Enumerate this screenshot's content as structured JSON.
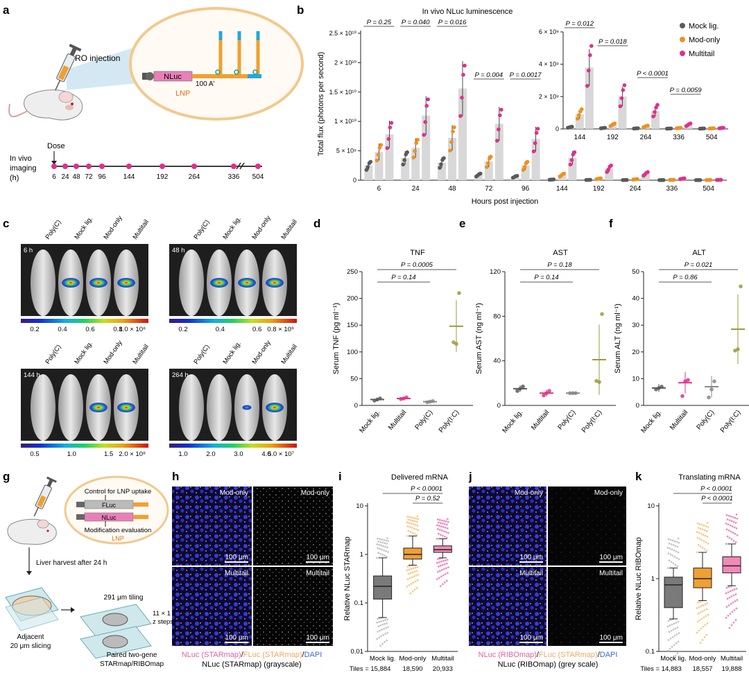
{
  "panel_letters": [
    "a",
    "b",
    "c",
    "d",
    "e",
    "f",
    "g",
    "h",
    "i",
    "j",
    "k"
  ],
  "panel_a": {
    "injection": "RO injection",
    "nluc": "NLuc",
    "polya": "100 A'",
    "lnp": "LNP",
    "dose": "Dose",
    "imaging_label": [
      "In vivo",
      "imaging",
      "(h)"
    ],
    "timepoints": [
      "6",
      "24",
      "48",
      "72",
      "96",
      "144",
      "192",
      "264",
      "336",
      "504"
    ]
  },
  "colors": {
    "mock": "#5a5a5a",
    "mod": "#f0901f",
    "multi": "#e0308a",
    "poly": "#9b9a3a",
    "bar": "#d8d8d8",
    "tube": "#f0a030",
    "tail": "#25a8d8",
    "ring": "#f2c98e"
  },
  "chart_data": [
    {
      "type": "bar",
      "panel": "b",
      "title": "In vivo NLuc luminescence",
      "xlabel": "Hours post injection",
      "ylabel": "Total flux (photons per second)",
      "ylim": [
        0,
        25000000000.0
      ],
      "yticks": [
        "0",
        "5 × 10⁹",
        "1 × 10¹⁰",
        "1.5 × 10¹⁰",
        "2 × 10¹⁰",
        "2.5 × 10¹⁰"
      ],
      "categories": [
        "6",
        "24",
        "48",
        "72",
        "96",
        "144",
        "192",
        "264",
        "336",
        "504"
      ],
      "series": [
        {
          "name": "Mock lig.",
          "values": [
            2500000000.0,
            3800000000.0,
            3000000000.0,
            900000000.0,
            600000000.0,
            100000000.0,
            50000000.0,
            30000000.0,
            20000000.0,
            20000000.0
          ]
        },
        {
          "name": "Mod-only",
          "values": [
            4800000000.0,
            5500000000.0,
            7200000000.0,
            3200000000.0,
            2500000000.0,
            900000000.0,
            250000000.0,
            150000000.0,
            50000000.0,
            30000000.0
          ]
        },
        {
          "name": "Multitail",
          "values": [
            7800000000.0,
            11000000000.0,
            15600000000.0,
            9600000000.0,
            7000000000.0,
            3800000000.0,
            2000000000.0,
            1100000000.0,
            250000000.0,
            50000000.0
          ]
        }
      ],
      "pvalues": [
        "P = 0.25",
        "P = 0.040",
        "P = 0.016",
        "P = 0.004",
        "P = 0.0017"
      ],
      "legend": [
        "Mock lig.",
        "Mod-only",
        "Multitail"
      ],
      "legend_position": "top-right",
      "inset": {
        "categories": [
          "144",
          "192",
          "264",
          "336",
          "504"
        ],
        "ylim": [
          0,
          6000000000.0
        ],
        "yticks": [
          "0",
          "2 × 10⁹",
          "4 × 10⁹",
          "6 × 10⁹"
        ],
        "pvalues": [
          "P = 0.012",
          "P = 0.018",
          "P < 0.0001",
          "P = 0.0059"
        ]
      }
    },
    {
      "type": "scatter",
      "panel": "d",
      "title": "TNF",
      "ylabel": "Serum TNF (pg ml⁻¹)",
      "ylim": [
        0,
        250
      ],
      "yticks": [
        "0",
        "50",
        "100",
        "150",
        "200",
        "250"
      ],
      "categories": [
        "Mock lig.",
        "Multitail",
        "Poly(C)",
        "Poly(I:C)"
      ],
      "means": [
        11,
        13,
        7,
        148
      ],
      "points": [
        [
          9,
          11,
          13
        ],
        [
          12,
          13,
          15
        ],
        [
          6,
          7,
          8
        ],
        [
          118,
          115,
          210
        ]
      ],
      "pvalues": [
        "P = 0.0005",
        "P = 0.14"
      ]
    },
    {
      "type": "scatter",
      "panel": "e",
      "title": "AST",
      "ylabel": "Serum AST (ng ml⁻¹)",
      "ylim": [
        0,
        120
      ],
      "yticks": [
        "0",
        "40",
        "80",
        "120"
      ],
      "categories": [
        "Mock lig.",
        "Multitail",
        "Poly(C)",
        "Poly(I:C)"
      ],
      "means": [
        15,
        11,
        11,
        41
      ],
      "points": [
        [
          13,
          15,
          17
        ],
        [
          9,
          11,
          13
        ],
        [
          11,
          11,
          11
        ],
        [
          22,
          21,
          82
        ]
      ],
      "pvalues": [
        "P = 0.18",
        "P = 0.14"
      ]
    },
    {
      "type": "scatter",
      "panel": "f",
      "title": "ALT",
      "ylabel": "Serum ALT (ng ml⁻¹)",
      "ylim": [
        0,
        50
      ],
      "yticks": [
        "0",
        "10",
        "20",
        "30",
        "40",
        "50"
      ],
      "categories": [
        "Mock lig.",
        "Multitail",
        "Poly(C)",
        "Poly(I:C)"
      ],
      "means": [
        6.5,
        8.5,
        7,
        28.5
      ],
      "points": [
        [
          6,
          6.5,
          7
        ],
        [
          3.5,
          9,
          9.5
        ],
        [
          3,
          6,
          9
        ],
        [
          20.5,
          21,
          44.5
        ]
      ],
      "pvalues": [
        "P = 0.021",
        "P = 0.86"
      ]
    },
    {
      "type": "box",
      "panel": "i",
      "title": "Delivered mRNA",
      "ylabel": "Relative NLuc STARmap",
      "scale": "log",
      "ylim": [
        0.01,
        10
      ],
      "yticks": [
        "0.01",
        "0.1",
        "1",
        "10"
      ],
      "categories": [
        "Mock lig.",
        "Mod-only",
        "Multitail"
      ],
      "tiles": [
        "Tiles = 15,884",
        "18,590",
        "20,933"
      ],
      "boxes": [
        [
          0.05,
          0.12,
          0.22,
          0.36,
          0.85
        ],
        [
          0.6,
          0.8,
          1.0,
          1.35,
          2.4
        ],
        [
          0.85,
          1.1,
          1.25,
          1.5,
          2.1
        ]
      ],
      "pvalues": [
        "P < 0.0001",
        "P = 0.52"
      ]
    },
    {
      "type": "box",
      "panel": "k",
      "title": "Translating mRNA",
      "ylabel": "Relative NLuc RIBOmap",
      "scale": "log",
      "ylim": [
        0.1,
        10
      ],
      "yticks": [
        "0.1",
        "1",
        "10"
      ],
      "categories": [
        "Mock lig.",
        "Mod-only",
        "Multitail"
      ],
      "tiles": [
        "Tiles = 14,883",
        "18,557",
        "19,888"
      ],
      "boxes": [
        [
          0.28,
          0.4,
          0.82,
          1.05,
          1.4
        ],
        [
          0.5,
          0.75,
          1.0,
          1.4,
          2.3
        ],
        [
          0.8,
          1.2,
          1.5,
          2.0,
          3.0
        ]
      ],
      "pvalues": [
        "P < 0.0001",
        "P < 0.0001"
      ]
    }
  ],
  "panel_c": {
    "groups": [
      "Poly(C)",
      "Mock lig.",
      "Mod-only",
      "Multitail"
    ],
    "times": [
      "6 h",
      "48 h",
      "144 h",
      "264 h"
    ],
    "scales": [
      [
        "0.2",
        "0.4",
        "0.6",
        "0.8",
        "1.0 × 10⁸"
      ],
      [
        "0.2",
        "0.4",
        "0.6",
        "0.8 × 10⁹"
      ],
      [
        "0.5",
        "1.0",
        "1.5",
        "2.0 × 10⁸"
      ],
      [
        "1.0",
        "2.0",
        "3.0",
        "4.0",
        "5.0 × 10⁷"
      ]
    ]
  },
  "panel_g": {
    "control": "Control for LNP uptake",
    "fluc": "FLuc",
    "nluc": "NLuc",
    "mod_eval": "Modification evaluation",
    "lnp": "LNP",
    "harvest": "Liver harvest after 24 h",
    "tiling": "291 μm tiling",
    "zsteps": [
      "11 × 1 μm",
      "z steps"
    ],
    "slicing": [
      "Adjacent",
      "20 μm slicing"
    ],
    "paired": [
      "Paired two-gene",
      "STARmap/RIBOmap"
    ]
  },
  "panel_h": {
    "labels": [
      "Mod-only",
      "Mod-only",
      "Multitail",
      "Multitail"
    ],
    "scale": "100 μm",
    "legend_parts": [
      "NLuc (STARmap)",
      "/",
      "FLuc (STARmap)",
      "/",
      "DAPI"
    ],
    "caption": "NLuc (STARmap) (grayscale)"
  },
  "panel_j": {
    "labels": [
      "Mod-only",
      "Mod-only",
      "Multitail",
      "Multitail"
    ],
    "scale": "100 μm",
    "legend_parts": [
      "NLuc (RIBOmap)",
      "/",
      "FLuc (STARmap)",
      "/",
      "DAPI"
    ],
    "caption": "NLuc (RIBOmap) (grey scale)"
  }
}
